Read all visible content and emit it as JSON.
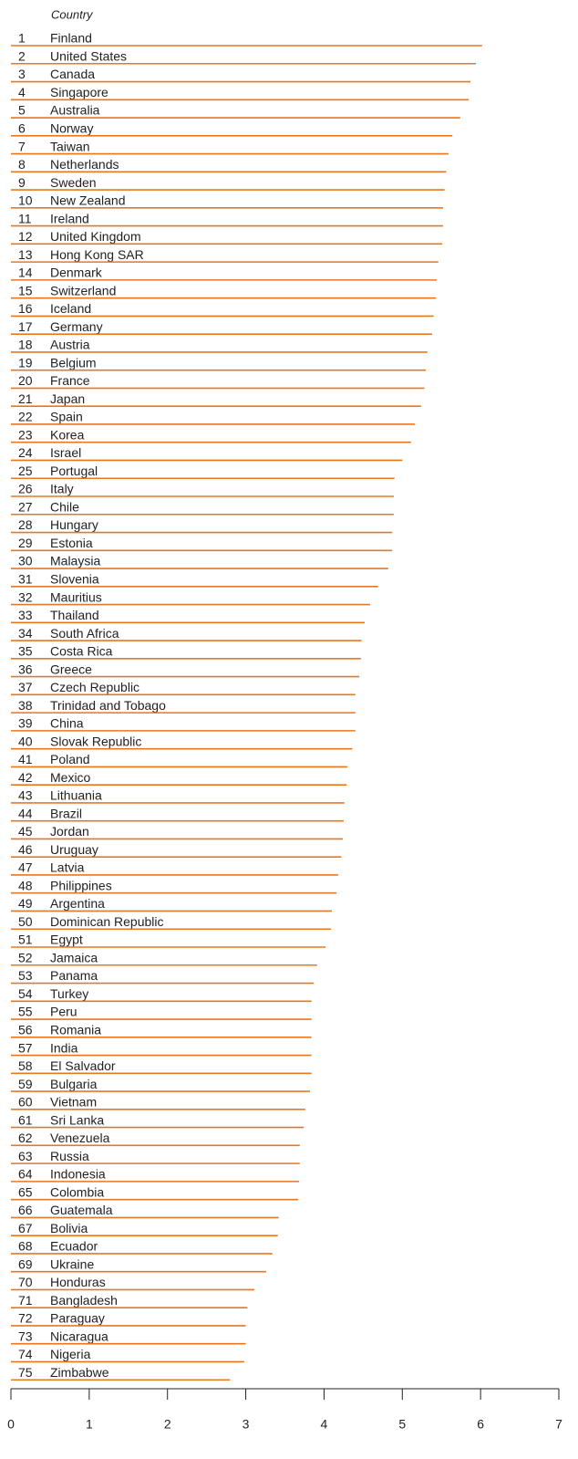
{
  "chart_data": {
    "type": "bar",
    "orientation": "horizontal",
    "category_header": "Country",
    "ranks": [
      1,
      2,
      3,
      4,
      5,
      6,
      7,
      8,
      9,
      10,
      11,
      12,
      13,
      14,
      15,
      16,
      17,
      18,
      19,
      20,
      21,
      22,
      23,
      24,
      25,
      26,
      27,
      28,
      29,
      30,
      31,
      32,
      33,
      34,
      35,
      36,
      37,
      38,
      39,
      40,
      41,
      42,
      43,
      44,
      45,
      46,
      47,
      48,
      49,
      50,
      51,
      52,
      53,
      54,
      55,
      56,
      57,
      58,
      59,
      60,
      61,
      62,
      63,
      64,
      65,
      66,
      67,
      68,
      69,
      70,
      71,
      72,
      73,
      74,
      75
    ],
    "categories": [
      "Finland",
      "United States",
      "Canada",
      "Singapore",
      "Australia",
      "Norway",
      "Taiwan",
      "Netherlands",
      "Sweden",
      "New Zealand",
      "Ireland",
      "United Kingdom",
      "Hong Kong SAR",
      "Denmark",
      "Switzerland",
      "Iceland",
      "Germany",
      "Austria",
      "Belgium",
      "France",
      "Japan",
      "Spain",
      "Korea",
      "Israel",
      "Portugal",
      "Italy",
      "Chile",
      "Hungary",
      "Estonia",
      "Malaysia",
      "Slovenia",
      "Mauritius",
      "Thailand",
      "South Africa",
      "Costa Rica",
      "Greece",
      "Czech Republic",
      "Trinidad and Tobago",
      "China",
      "Slovak Republic",
      "Poland",
      "Mexico",
      "Lithuania",
      "Brazil",
      "Jordan",
      "Uruguay",
      "Latvia",
      "Philippines",
      "Argentina",
      "Dominican Republic",
      "Egypt",
      "Jamaica",
      "Panama",
      "Turkey",
      "Peru",
      "Romania",
      "India",
      "El Salvador",
      "Bulgaria",
      "Vietnam",
      "Sri Lanka",
      "Venezuela",
      "Russia",
      "Indonesia",
      "Colombia",
      "Guatemala",
      "Bolivia",
      "Ecuador",
      "Ukraine",
      "Honduras",
      "Bangladesh",
      "Paraguay",
      "Nicaragua",
      "Nigeria",
      "Zimbabwe"
    ],
    "values": [
      6.02,
      5.94,
      5.87,
      5.85,
      5.74,
      5.64,
      5.59,
      5.56,
      5.54,
      5.52,
      5.52,
      5.51,
      5.46,
      5.44,
      5.43,
      5.4,
      5.38,
      5.32,
      5.3,
      5.28,
      5.24,
      5.16,
      5.11,
      5.0,
      4.9,
      4.89,
      4.89,
      4.87,
      4.87,
      4.82,
      4.69,
      4.59,
      4.52,
      4.48,
      4.47,
      4.45,
      4.4,
      4.4,
      4.4,
      4.36,
      4.3,
      4.29,
      4.26,
      4.25,
      4.24,
      4.22,
      4.18,
      4.16,
      4.1,
      4.09,
      4.02,
      3.91,
      3.87,
      3.84,
      3.84,
      3.84,
      3.84,
      3.84,
      3.82,
      3.76,
      3.74,
      3.69,
      3.69,
      3.68,
      3.67,
      3.42,
      3.41,
      3.34,
      3.26,
      3.11,
      3.02,
      3.0,
      3.0,
      2.98,
      2.8
    ],
    "color": "#e87722",
    "xlim": [
      0,
      7
    ],
    "xticks": [
      0,
      1,
      2,
      3,
      4,
      5,
      6,
      7
    ]
  }
}
